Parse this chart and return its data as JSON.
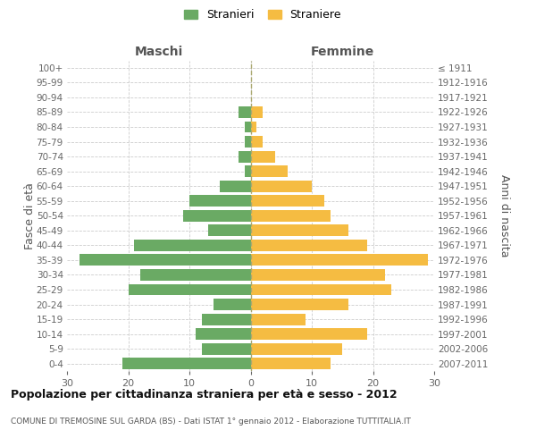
{
  "age_groups": [
    "0-4",
    "5-9",
    "10-14",
    "15-19",
    "20-24",
    "25-29",
    "30-34",
    "35-39",
    "40-44",
    "45-49",
    "50-54",
    "55-59",
    "60-64",
    "65-69",
    "70-74",
    "75-79",
    "80-84",
    "85-89",
    "90-94",
    "95-99",
    "100+"
  ],
  "birth_years": [
    "2007-2011",
    "2002-2006",
    "1997-2001",
    "1992-1996",
    "1987-1991",
    "1982-1986",
    "1977-1981",
    "1972-1976",
    "1967-1971",
    "1962-1966",
    "1957-1961",
    "1952-1956",
    "1947-1951",
    "1942-1946",
    "1937-1941",
    "1932-1936",
    "1927-1931",
    "1922-1926",
    "1917-1921",
    "1912-1916",
    "≤ 1911"
  ],
  "maschi": [
    21,
    8,
    9,
    8,
    6,
    20,
    18,
    28,
    19,
    7,
    11,
    10,
    5,
    1,
    2,
    1,
    1,
    2,
    0,
    0,
    0
  ],
  "femmine": [
    13,
    15,
    19,
    9,
    16,
    23,
    22,
    29,
    19,
    16,
    13,
    12,
    10,
    6,
    4,
    2,
    1,
    2,
    0,
    0,
    0
  ],
  "color_maschi": "#6aaa64",
  "color_femmine": "#f5bc42",
  "title_main": "Popolazione per cittadinanza straniera per età e sesso - 2012",
  "title_sub": "COMUNE DI TREMOSINE SUL GARDA (BS) - Dati ISTAT 1° gennaio 2012 - Elaborazione TUTTITALIA.IT",
  "label_maschi": "Stranieri",
  "label_femmine": "Straniere",
  "header_left": "Maschi",
  "header_right": "Femmine",
  "ylabel_left": "Fasce di età",
  "ylabel_right": "Anni di nascita",
  "xlim": 30,
  "background_color": "#ffffff",
  "grid_color": "#cccccc",
  "xticks": [
    30,
    20,
    10,
    0,
    10,
    20,
    30
  ]
}
